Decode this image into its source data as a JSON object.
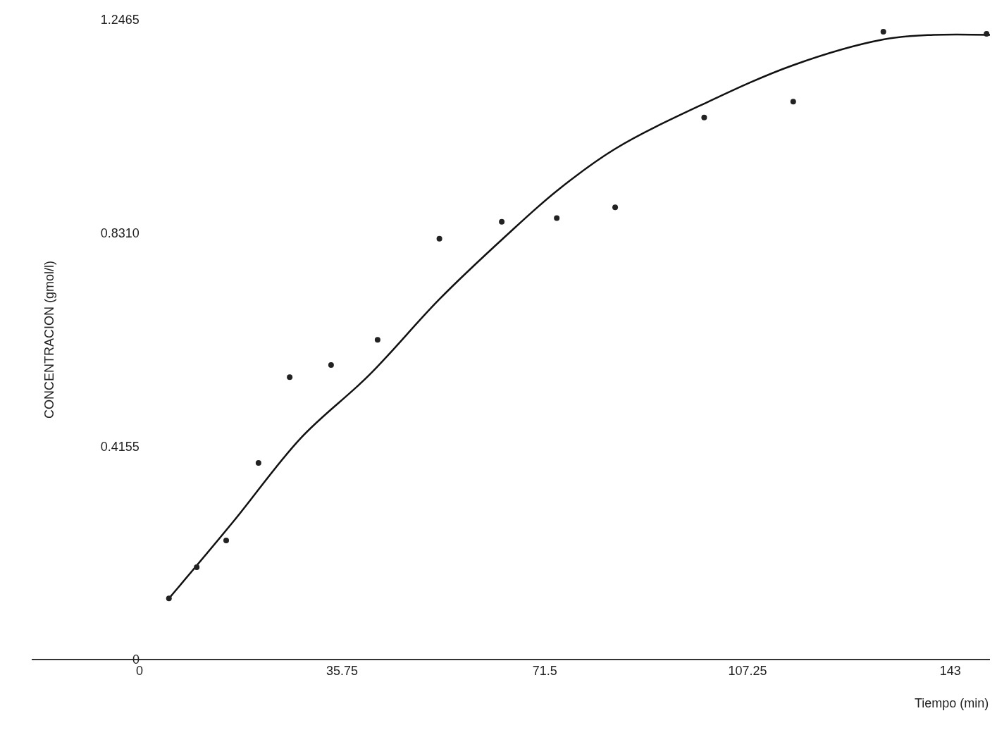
{
  "chart_data": {
    "type": "scatter",
    "xlabel": "Tiempo (min)",
    "ylabel": "CONCENTRACION (gmol/l)",
    "xlim": [
      -19,
      150
    ],
    "ylim": [
      0,
      1.2465
    ],
    "xticks": [
      0,
      35.75,
      71.5,
      107.25,
      143
    ],
    "yticks": [
      0,
      0.4155,
      {
        "value": 0.831,
        "label": "0.8310"
      },
      1.2465
    ],
    "grid": false,
    "legend": false,
    "line_style": "solid",
    "series": [
      {
        "marker": "circle",
        "color": "#222222",
        "x": [
          5.2,
          10.1,
          15.3,
          21.0,
          26.5,
          33.8,
          42.0,
          52.9,
          63.9,
          73.6,
          83.9,
          99.6,
          115.3,
          131.2,
          149.4
        ],
        "values": [
          0.119,
          0.18,
          0.232,
          0.383,
          0.55,
          0.574,
          0.623,
          0.82,
          0.853,
          0.86,
          0.881,
          1.056,
          1.087,
          1.223,
          1.219
        ]
      },
      {
        "type": "line",
        "marker": "none",
        "color": "#111111",
        "x": [
          5.2,
          16.5,
          28.5,
          40.5,
          52.9,
          64.5,
          73.6,
          83.9,
          99.6,
          115.3,
          131.2,
          140.0,
          150.0
        ],
        "values": [
          0.119,
          0.268,
          0.432,
          0.554,
          0.702,
          0.824,
          0.913,
          0.995,
          1.083,
          1.158,
          1.208,
          1.217,
          1.217
        ]
      }
    ]
  }
}
